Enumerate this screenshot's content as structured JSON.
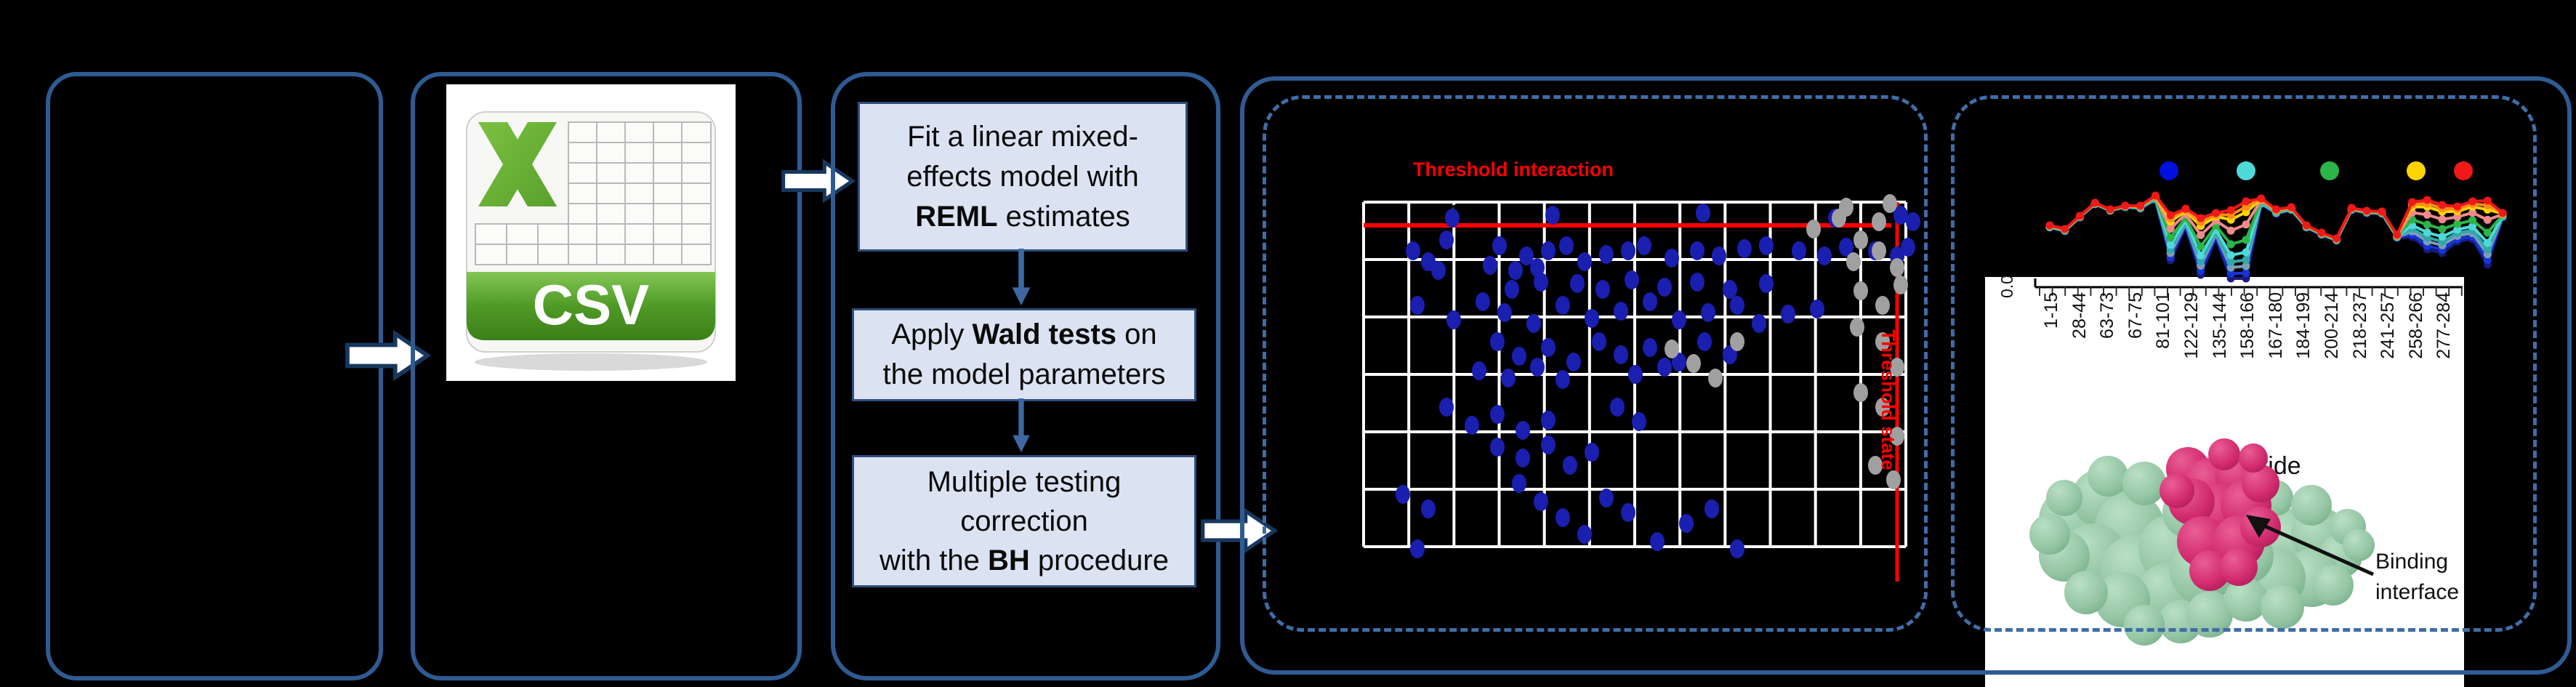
{
  "colors": {
    "panel_border": "#2f5b93",
    "dashed_border": "#3f6da8",
    "flowbox_fill": "#dbe3f3",
    "flowbox_border": "#2e4d7b",
    "block_arrow_border": "#17375e",
    "down_arrow": "#3e68a3",
    "red_accent": "#ff0000",
    "scatter_blue_dot": "#1a1fb0",
    "scatter_grey_dot": "#a0a0a0",
    "grid_line": "#ffffff",
    "csv_green": "#62ac35"
  },
  "csv_icon": {
    "label": "CSV"
  },
  "flow": {
    "boxA": {
      "lines": [
        [
          [
            "Fit a linear mixed-",
            false
          ]
        ],
        [
          [
            "effects model with",
            false
          ]
        ],
        [
          [
            "REML",
            true
          ],
          [
            " estimates",
            false
          ]
        ]
      ]
    },
    "boxB": {
      "lines": [
        [
          [
            "Apply ",
            false
          ],
          [
            "Wald tests",
            true
          ],
          [
            " on",
            false
          ]
        ],
        [
          [
            "the model parameters",
            false
          ]
        ]
      ]
    },
    "boxC": {
      "lines": [
        [
          [
            "Multiple testing",
            false
          ]
        ],
        [
          [
            "correction",
            false
          ]
        ],
        [
          [
            "with the ",
            false
          ],
          [
            "BH",
            true
          ],
          [
            " procedure",
            false
          ]
        ]
      ]
    }
  },
  "scatter": {
    "title": "Threshold interaction",
    "vertical_label": "Threshold state",
    "dots_blue": [
      [
        1944,
        345
      ],
      [
        1965,
        360
      ],
      [
        1979,
        372
      ],
      [
        1990,
        330
      ],
      [
        1998,
        300
      ],
      [
        2050,
        365
      ],
      [
        2063,
        338
      ],
      [
        2085,
        372
      ],
      [
        2100,
        352
      ],
      [
        2115,
        368
      ],
      [
        2130,
        345
      ],
      [
        2136,
        296
      ],
      [
        2155,
        338
      ],
      [
        2180,
        360
      ],
      [
        2210,
        350
      ],
      [
        2240,
        345
      ],
      [
        2262,
        338
      ],
      [
        2300,
        355
      ],
      [
        2335,
        345
      ],
      [
        2343,
        293
      ],
      [
        2365,
        352
      ],
      [
        2400,
        342
      ],
      [
        2430,
        338
      ],
      [
        2475,
        345
      ],
      [
        2510,
        352
      ],
      [
        2525,
        300
      ],
      [
        2540,
        340
      ],
      [
        2580,
        345
      ],
      [
        2610,
        352
      ],
      [
        2615,
        296
      ],
      [
        2632,
        305
      ],
      [
        1950,
        420
      ],
      [
        2000,
        440
      ],
      [
        2040,
        415
      ],
      [
        2070,
        430
      ],
      [
        2080,
        398
      ],
      [
        2110,
        445
      ],
      [
        2120,
        388
      ],
      [
        2150,
        420
      ],
      [
        2170,
        390
      ],
      [
        2190,
        438
      ],
      [
        2205,
        398
      ],
      [
        2230,
        428
      ],
      [
        2245,
        385
      ],
      [
        2270,
        415
      ],
      [
        2290,
        395
      ],
      [
        2310,
        440
      ],
      [
        2335,
        388
      ],
      [
        2350,
        430
      ],
      [
        2380,
        398
      ],
      [
        2390,
        420
      ],
      [
        2420,
        445
      ],
      [
        2430,
        390
      ],
      [
        2460,
        432
      ],
      [
        2500,
        425
      ],
      [
        2035,
        510
      ],
      [
        2060,
        470
      ],
      [
        2075,
        520
      ],
      [
        2090,
        490
      ],
      [
        2115,
        505
      ],
      [
        2130,
        478
      ],
      [
        2150,
        522
      ],
      [
        2165,
        498
      ],
      [
        2200,
        470
      ],
      [
        2230,
        488
      ],
      [
        2250,
        515
      ],
      [
        2270,
        478
      ],
      [
        2290,
        505
      ],
      [
        2310,
        498
      ],
      [
        2345,
        470
      ],
      [
        2380,
        488
      ],
      [
        1990,
        560
      ],
      [
        2025,
        585
      ],
      [
        2060,
        570
      ],
      [
        2095,
        592
      ],
      [
        2130,
        578
      ],
      [
        2060,
        615
      ],
      [
        2095,
        630
      ],
      [
        2130,
        612
      ],
      [
        2160,
        640
      ],
      [
        2190,
        622
      ],
      [
        2225,
        560
      ],
      [
        2255,
        580
      ],
      [
        1930,
        680
      ],
      [
        1950,
        755
      ],
      [
        1965,
        700
      ],
      [
        2090,
        665
      ],
      [
        2120,
        690
      ],
      [
        2150,
        712
      ],
      [
        2180,
        735
      ],
      [
        2210,
        685
      ],
      [
        2240,
        705
      ],
      [
        2280,
        745
      ],
      [
        2320,
        720
      ],
      [
        2355,
        700
      ],
      [
        2390,
        755
      ],
      [
        2625,
        340
      ]
    ],
    "dots_grey": [
      [
        2495,
        315
      ],
      [
        2530,
        300
      ],
      [
        2540,
        285
      ],
      [
        2560,
        330
      ],
      [
        2585,
        305
      ],
      [
        2600,
        280
      ],
      [
        2550,
        360
      ],
      [
        2585,
        345
      ],
      [
        2610,
        368
      ],
      [
        2560,
        400
      ],
      [
        2590,
        420
      ],
      [
        2615,
        392
      ],
      [
        2555,
        450
      ],
      [
        2590,
        470
      ],
      [
        2610,
        505
      ],
      [
        2560,
        540
      ],
      [
        2590,
        560
      ],
      [
        2610,
        600
      ],
      [
        2580,
        640
      ],
      [
        2605,
        660
      ],
      [
        2300,
        480
      ],
      [
        2330,
        500
      ],
      [
        2360,
        520
      ],
      [
        2390,
        470
      ]
    ]
  },
  "uptake_chart": {
    "type": "line",
    "ytick_label": "0.0",
    "xlabel": "Peptide",
    "peptides": [
      "1-15",
      "28-44",
      "63-73",
      "67-75",
      "81-101",
      "122-129",
      "135-144",
      "158-166",
      "167-180",
      "184-199",
      "200-214",
      "218-237",
      "241-257",
      "258-266",
      "277-284"
    ],
    "legend_dot_colors": [
      "#0010e0",
      "#4fd8d8",
      "#2cb548",
      "#ffd400",
      "#f01818"
    ],
    "base": [
      310,
      315,
      297,
      279,
      288,
      283,
      283,
      269,
      296,
      287,
      300,
      293,
      289,
      277,
      273,
      288,
      285,
      310,
      320,
      328,
      286,
      290,
      291,
      323,
      278,
      275,
      282,
      284,
      277,
      276,
      293
    ],
    "extra": [
      3,
      3,
      2,
      2,
      2,
      2,
      4,
      6,
      62,
      25,
      78,
      35,
      94,
      106,
      8,
      6,
      4,
      3,
      3,
      3,
      3,
      3,
      3,
      4,
      48,
      68,
      66,
      48,
      52,
      88,
      6
    ],
    "series": [
      {
        "name": "navy",
        "color": "#1a1a7e",
        "amp": 1.0
      },
      {
        "name": "blue",
        "color": "#1535d8",
        "amp": 0.93
      },
      {
        "name": "steel",
        "color": "#7d9cb8",
        "amp": 0.84
      },
      {
        "name": "teal",
        "color": "#2fa8a8",
        "amp": 0.76
      },
      {
        "name": "cyan",
        "color": "#4fd8d8",
        "amp": 0.66
      },
      {
        "name": "green",
        "color": "#2cb548",
        "amp": 0.5
      },
      {
        "name": "salmon",
        "color": "#f08a8a",
        "amp": 0.3
      },
      {
        "name": "yellow",
        "color": "#ffd400",
        "amp": 0.14
      },
      {
        "name": "orange",
        "color": "#ff8c1a",
        "amp": 0.07
      },
      {
        "name": "red",
        "color": "#f01818",
        "amp": 0.0
      }
    ]
  },
  "binding": {
    "line1": "Binding",
    "line2": "interface"
  }
}
